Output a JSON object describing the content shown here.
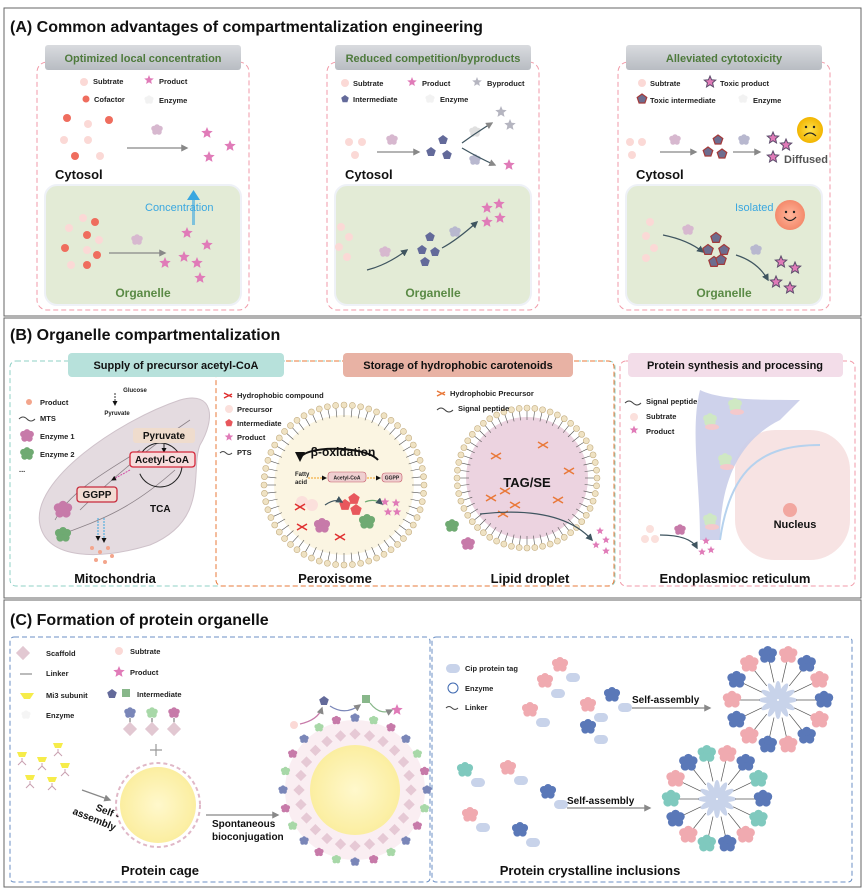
{
  "panel_a": {
    "title": "(A) Common advantages of compartmentalization engineering",
    "cards": [
      {
        "header": "Optimized local concentration",
        "legend": [
          "Subtrate",
          "Product",
          "Cofactor",
          "Enzyme"
        ],
        "cytosol": "Cytosol",
        "organelle": "Organelle",
        "note": "Concentration"
      },
      {
        "header": "Reduced competition/byproducts",
        "legend": [
          "Subtrate",
          "Product",
          "Byproduct",
          "Intermediate",
          "Enzyme"
        ],
        "cytosol": "Cytosol",
        "organelle": "Organelle"
      },
      {
        "header": "Alleviated cytotoxicity",
        "legend": [
          "Subtrate",
          "Toxic product",
          "Toxic intermediate",
          "Enzyme"
        ],
        "cytosol": "Cytosol",
        "organelle": "Organelle",
        "note": "Isolated",
        "note2": "Diffused"
      }
    ]
  },
  "panel_b": {
    "title": "(B) Organelle compartmentalization",
    "headers": [
      "Supply of precursor acetyl-CoA",
      "Storage of hydrophobic carotenoids",
      "Protein synthesis and processing"
    ],
    "mito": {
      "legend": [
        "Product",
        "MTS",
        "Enzyme 1",
        "Enzyme 2",
        "..."
      ],
      "glucose": "Glucose",
      "pyruvate_small": "Pyruvate",
      "pyruvate": "Pyruvate",
      "acetyl": "Acetyl-CoA",
      "ggpp": "GGPP",
      "tca": "TCA",
      "label": "Mitochondria"
    },
    "perox": {
      "legend": [
        "Hydrophobic compound",
        "Precursor",
        "Intermediate",
        "Product",
        "PTS"
      ],
      "beta": "β-oxidation",
      "fatty": "Fatty",
      "acid": "acid",
      "acetyl": "Acetyl-CoA",
      "ggpp": "GGPP",
      "label": "Peroxisome"
    },
    "lipid": {
      "legend": [
        "Hydrophobic Precursor",
        "Signal peptide"
      ],
      "core": "TAG/SE",
      "label": "Lipid droplet"
    },
    "er": {
      "legend": [
        "Signal peptide",
        "Subtrate",
        "Product"
      ],
      "nucleus": "Nucleus",
      "label": "Endoplasmioc reticulum"
    }
  },
  "panel_c": {
    "title": "(C) Formation of protein organelle",
    "cage": {
      "legend": [
        "Scaffold",
        "Linker",
        "Mi3 subunit",
        "Enzyme",
        "Subtrate",
        "Product",
        "Intermediate"
      ],
      "self1": "Self -",
      "self2": "assembly",
      "spont1": "Spontaneous",
      "spont2": "bioconjugation",
      "label": "Protein cage"
    },
    "cip": {
      "legend": [
        "Cip protein tag",
        "Enzyme",
        "Linker"
      ],
      "arrow1": "Self-assembly",
      "arrow2": "Self-assembly",
      "label": "Protein crystalline inclusions"
    }
  },
  "colors": {
    "panel_border": "#555555",
    "pink_dash": "#f19aa8",
    "teal": "#a8d8d0",
    "orange": "#e9793a",
    "header_gray": "#c9ccd1",
    "organelle_green": "#e3ebd6",
    "product_star": "#e07bb8",
    "intermediate": "#636a9a",
    "blue_dash": "#6b8fc4",
    "concentration": "#3aa7e0"
  }
}
